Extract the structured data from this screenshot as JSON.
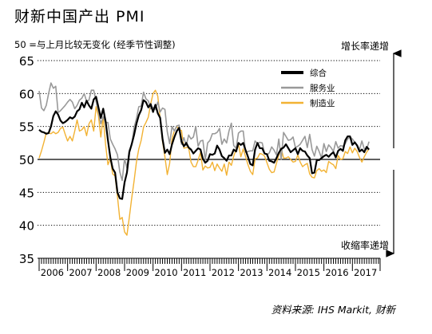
{
  "header": {
    "title": "财新中国产出 PMI",
    "subtitle": "50 =与上月比较无变化 (经季节性调整)"
  },
  "footer": {
    "source": "资料来源: IHS Markit, 财新"
  },
  "colors": {
    "composite": "#000000",
    "services": "#999999",
    "manufacturing": "#f2b233",
    "grid": "#000000",
    "fifty_line": "#000000"
  },
  "chart_data": {
    "type": "line",
    "ylim": [
      35,
      65
    ],
    "yticks": [
      35,
      40,
      45,
      50,
      55,
      60,
      65
    ],
    "y_reference_line": 50,
    "grid": "dotted horizontal",
    "x_start": "2006-01",
    "x_end": "2017-08",
    "x_year_labels": [
      "2006",
      "2007",
      "2008",
      "2009",
      "2010",
      "2011",
      "2012",
      "2013",
      "2014",
      "2015",
      "2016",
      "2017"
    ],
    "right_annotation_top": "增长率递增",
    "right_annotation_bottom": "收缩率递增",
    "legend_position": "top-right",
    "series": [
      {
        "name": "综合",
        "key": "composite",
        "values": [
          [
            54.5,
            54.2,
            54.1,
            53.9,
            54.0,
            55.0,
            56.6,
            57.3,
            56.8,
            55.9,
            55.5,
            55.7
          ],
          [
            56.0,
            56.4,
            56.2,
            56.5,
            57.3,
            57.6,
            58.6,
            57.9,
            58.9,
            58.2,
            57.7,
            59.1
          ],
          [
            59.5,
            57.9,
            56.3,
            57.7,
            55.8,
            52.9,
            50.3,
            48.6,
            48.0,
            45.0,
            44.1,
            44.0
          ],
          [
            46.5,
            48.0,
            51.1,
            52.3,
            53.7,
            55.4,
            56.7,
            57.5,
            59.0,
            58.7,
            57.9,
            58.4
          ],
          [
            57.2,
            58.3,
            57.0,
            56.3,
            53.1,
            51.0,
            51.5,
            50.8,
            52.3,
            53.4,
            54.3,
            54.8
          ],
          [
            52.7,
            52.0,
            52.5,
            51.8,
            51.5,
            50.9,
            51.3,
            51.7,
            51.5,
            50.1,
            49.5,
            49.8
          ],
          [
            50.8,
            50.7,
            50.9,
            52.1,
            51.5,
            50.5,
            50.2,
            49.8,
            50.6,
            50.6,
            51.5,
            51.2
          ],
          [
            52.5,
            52.2,
            52.5,
            51.4,
            50.4,
            49.3,
            49.1,
            51.5,
            52.5,
            51.7,
            51.7,
            50.9
          ],
          [
            50.8,
            49.8,
            49.7,
            49.5,
            50.2,
            51.0,
            51.6,
            51.8,
            52.3,
            51.7,
            51.1,
            51.4
          ],
          [
            51.7,
            50.8,
            51.7,
            51.3,
            51.2,
            50.6,
            50.2,
            47.9,
            48.0,
            49.9,
            49.9,
            50.2
          ],
          [
            50.5,
            50.7,
            50.4,
            50.8,
            51.1,
            50.3,
            51.3,
            51.6,
            51.3,
            52.9,
            53.5,
            53.5
          ],
          [
            52.2,
            52.6,
            52.1,
            51.2,
            51.5,
            51.1,
            51.9,
            51.5
          ]
        ]
      },
      {
        "name": "服务业",
        "key": "services",
        "values": [
          [
            60.4,
            57.8,
            57.4,
            58.2,
            60.0,
            61.6,
            60.8,
            61.1,
            57.1,
            57.4,
            57.8,
            58.2
          ],
          [
            58.7,
            59.1,
            58.7,
            57.7,
            58.2,
            59.0,
            59.3,
            60.0,
            58.8,
            59.0,
            60.5,
            60.5
          ],
          [
            58.8,
            57.2,
            55.4,
            56.5,
            55.6,
            55.6,
            53.1,
            52.3,
            51.6,
            50.7,
            48.1,
            46.8
          ],
          [
            50.1,
            48.7,
            51.4,
            52.2,
            54.8,
            56.2,
            58.0,
            58.1,
            60.2,
            59.2,
            58.9,
            57.7
          ],
          [
            57.9,
            57.6,
            58.7,
            57.2,
            57.8,
            57.6,
            54.2,
            52.4,
            55.0,
            54.3,
            55.1,
            55.2
          ],
          [
            52.3,
            53.3,
            52.1,
            53.7,
            53.1,
            53.4,
            55.0,
            52.0,
            52.8,
            52.9,
            49.9,
            52.5
          ],
          [
            52.9,
            53.9,
            53.9,
            54.1,
            54.7,
            52.3,
            53.1,
            52.5,
            54.3,
            55.5,
            52.1,
            51.7
          ],
          [
            54.0,
            54.3,
            54.3,
            51.1,
            51.2,
            51.3,
            51.3,
            52.8,
            52.4,
            52.6,
            52.5,
            50.9
          ],
          [
            50.7,
            51.0,
            51.9,
            51.4,
            50.7,
            53.1,
            50.0,
            54.1,
            53.5,
            52.9,
            53.0,
            53.4
          ],
          [
            51.8,
            52.0,
            52.3,
            52.9,
            53.5,
            51.8,
            53.8,
            51.5,
            50.5,
            52.0,
            51.2,
            50.2
          ],
          [
            52.4,
            51.2,
            52.2,
            51.8,
            51.2,
            52.7,
            51.7,
            52.1,
            52.0,
            52.4,
            53.1,
            53.4
          ],
          [
            53.1,
            52.6,
            52.2,
            51.5,
            52.8,
            51.6,
            51.5,
            52.7
          ]
        ]
      },
      {
        "name": "制造业",
        "key": "manufacturing",
        "values": [
          [
            50.2,
            51.3,
            52.6,
            54.0,
            54.0,
            53.9,
            54.2,
            53.9,
            54.1,
            54.7,
            54.9,
            53.8
          ],
          [
            52.8,
            53.5,
            52.8,
            54.3,
            56.0,
            54.3,
            54.5,
            55.0,
            53.6,
            55.4,
            56.0,
            54.3
          ],
          [
            58.0,
            56.6,
            53.4,
            56.4,
            52.3,
            49.2,
            50.1,
            47.8,
            47.5,
            44.4,
            40.9,
            41.2
          ],
          [
            39.0,
            38.5,
            41.2,
            44.1,
            46.7,
            49.6,
            51.6,
            52.9,
            54.9,
            55.6,
            56.4,
            58.4
          ],
          [
            60.0,
            60.5,
            59.6,
            56.2,
            52.7,
            50.4,
            47.7,
            49.4,
            53.1,
            54.4,
            55.0,
            54.5
          ],
          [
            54.4,
            51.7,
            51.8,
            51.8,
            49.6,
            48.9,
            48.9,
            49.9,
            51.1,
            48.4,
            49.0,
            48.7
          ],
          [
            48.8,
            49.6,
            48.3,
            49.3,
            48.7,
            48.2,
            49.3,
            47.6,
            49.6,
            49.1,
            50.5,
            51.5
          ],
          [
            52.3,
            50.4,
            51.6,
            50.4,
            49.2,
            48.2,
            47.7,
            50.1,
            50.2,
            50.9,
            50.8,
            50.5
          ],
          [
            49.5,
            48.5,
            48.0,
            48.1,
            49.4,
            50.7,
            51.7,
            50.2,
            50.2,
            50.4,
            50.0,
            49.6
          ],
          [
            49.7,
            50.7,
            49.6,
            48.9,
            49.2,
            49.4,
            47.8,
            47.3,
            47.2,
            48.3,
            48.6,
            48.2
          ],
          [
            48.4,
            48.0,
            49.7,
            49.4,
            49.2,
            48.6,
            50.6,
            50.0,
            50.1,
            51.2,
            50.9,
            51.9
          ],
          [
            51.0,
            51.7,
            51.2,
            50.3,
            49.6,
            50.4,
            51.1,
            51.6
          ]
        ]
      }
    ]
  }
}
